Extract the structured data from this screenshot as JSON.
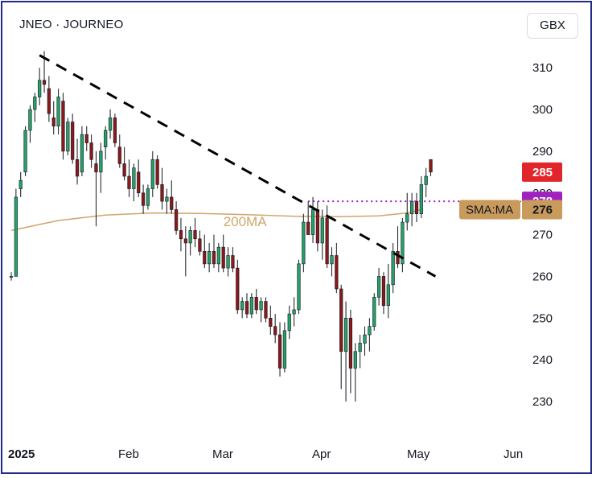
{
  "header": {
    "symbol": "JNEO",
    "separator": "·",
    "name": "JOURNEO",
    "currency": "GBX"
  },
  "colors": {
    "up": "#26a269",
    "down": "#8b1a1a",
    "ma": "#d0a66a",
    "trendline": "#000000",
    "level_line": "#a020c0",
    "last_price_tag": "#e0262b",
    "level_tag": "#a020c0",
    "sma_tag": "#c89a5c",
    "frame": "#1e2a8c"
  },
  "chart_data": {
    "type": "candlestick",
    "y_axis": {
      "ticks": [
        230,
        240,
        250,
        260,
        270,
        280,
        290,
        300,
        310
      ],
      "range": [
        222,
        318
      ],
      "position": "right"
    },
    "x_axis": {
      "ticks": [
        {
          "label": "2025",
          "bold": true,
          "index": 0
        },
        {
          "label": "Feb",
          "bold": false,
          "index": 22
        },
        {
          "label": "Mar",
          "bold": false,
          "index": 42
        },
        {
          "label": "Apr",
          "bold": false,
          "index": 62
        },
        {
          "label": "May",
          "bold": false,
          "index": 83
        },
        {
          "label": "Jun",
          "bold": false,
          "index": 103
        }
      ]
    },
    "grid": false,
    "candles": [
      {
        "o": 260,
        "h": 261,
        "l": 259,
        "c": 260
      },
      {
        "o": 260,
        "h": 281,
        "l": 260,
        "c": 279
      },
      {
        "o": 281,
        "h": 285,
        "l": 279,
        "c": 283
      },
      {
        "o": 285,
        "h": 296,
        "l": 284,
        "c": 295
      },
      {
        "o": 295,
        "h": 301,
        "l": 292,
        "c": 300
      },
      {
        "o": 300,
        "h": 304,
        "l": 297,
        "c": 303
      },
      {
        "o": 303,
        "h": 310,
        "l": 301,
        "c": 307
      },
      {
        "o": 307,
        "h": 314,
        "l": 304,
        "c": 306
      },
      {
        "o": 305,
        "h": 308,
        "l": 297,
        "c": 299
      },
      {
        "o": 298,
        "h": 302,
        "l": 294,
        "c": 296
      },
      {
        "o": 296,
        "h": 305,
        "l": 294,
        "c": 303
      },
      {
        "o": 302,
        "h": 304,
        "l": 288,
        "c": 290
      },
      {
        "o": 290,
        "h": 298,
        "l": 289,
        "c": 297
      },
      {
        "o": 297,
        "h": 299,
        "l": 287,
        "c": 288
      },
      {
        "o": 288,
        "h": 293,
        "l": 282,
        "c": 284
      },
      {
        "o": 285,
        "h": 296,
        "l": 284,
        "c": 294
      },
      {
        "o": 294,
        "h": 296,
        "l": 290,
        "c": 292
      },
      {
        "o": 292,
        "h": 294,
        "l": 286,
        "c": 288
      },
      {
        "o": 287,
        "h": 290,
        "l": 272,
        "c": 285
      },
      {
        "o": 285,
        "h": 292,
        "l": 280,
        "c": 290
      },
      {
        "o": 291,
        "h": 296,
        "l": 288,
        "c": 295
      },
      {
        "o": 295,
        "h": 300,
        "l": 293,
        "c": 298
      },
      {
        "o": 298,
        "h": 299,
        "l": 291,
        "c": 292
      },
      {
        "o": 291,
        "h": 294,
        "l": 286,
        "c": 287
      },
      {
        "o": 287,
        "h": 291,
        "l": 283,
        "c": 284
      },
      {
        "o": 284,
        "h": 288,
        "l": 279,
        "c": 281
      },
      {
        "o": 281,
        "h": 287,
        "l": 278,
        "c": 286
      },
      {
        "o": 285,
        "h": 288,
        "l": 279,
        "c": 280
      },
      {
        "o": 280,
        "h": 282,
        "l": 275,
        "c": 277
      },
      {
        "o": 277,
        "h": 282,
        "l": 276,
        "c": 281
      },
      {
        "o": 281,
        "h": 290,
        "l": 279,
        "c": 288
      },
      {
        "o": 288,
        "h": 289,
        "l": 281,
        "c": 282
      },
      {
        "o": 282,
        "h": 286,
        "l": 276,
        "c": 278
      },
      {
        "o": 278,
        "h": 281,
        "l": 275,
        "c": 279
      },
      {
        "o": 279,
        "h": 283,
        "l": 275,
        "c": 276
      },
      {
        "o": 276,
        "h": 278,
        "l": 270,
        "c": 271
      },
      {
        "o": 271,
        "h": 274,
        "l": 266,
        "c": 269
      },
      {
        "o": 269,
        "h": 272,
        "l": 260,
        "c": 268
      },
      {
        "o": 268,
        "h": 272,
        "l": 265,
        "c": 271
      },
      {
        "o": 271,
        "h": 274,
        "l": 267,
        "c": 269
      },
      {
        "o": 269,
        "h": 271,
        "l": 265,
        "c": 266
      },
      {
        "o": 266,
        "h": 270,
        "l": 262,
        "c": 263
      },
      {
        "o": 263,
        "h": 268,
        "l": 261,
        "c": 266
      },
      {
        "o": 266,
        "h": 270,
        "l": 262,
        "c": 263
      },
      {
        "o": 263,
        "h": 268,
        "l": 261,
        "c": 267
      },
      {
        "o": 267,
        "h": 270,
        "l": 261,
        "c": 262
      },
      {
        "o": 262,
        "h": 267,
        "l": 260,
        "c": 265
      },
      {
        "o": 265,
        "h": 267,
        "l": 261,
        "c": 262
      },
      {
        "o": 262,
        "h": 264,
        "l": 251,
        "c": 252
      },
      {
        "o": 252,
        "h": 255,
        "l": 250,
        "c": 254
      },
      {
        "o": 254,
        "h": 256,
        "l": 250,
        "c": 251
      },
      {
        "o": 251,
        "h": 256,
        "l": 250,
        "c": 255
      },
      {
        "o": 255,
        "h": 257,
        "l": 251,
        "c": 252
      },
      {
        "o": 252,
        "h": 255,
        "l": 249,
        "c": 254
      },
      {
        "o": 254,
        "h": 255,
        "l": 249,
        "c": 250
      },
      {
        "o": 250,
        "h": 253,
        "l": 246,
        "c": 248
      },
      {
        "o": 248,
        "h": 251,
        "l": 244,
        "c": 246
      },
      {
        "o": 246,
        "h": 249,
        "l": 236,
        "c": 238
      },
      {
        "o": 238,
        "h": 249,
        "l": 237,
        "c": 247
      },
      {
        "o": 247,
        "h": 253,
        "l": 245,
        "c": 251
      },
      {
        "o": 251,
        "h": 255,
        "l": 248,
        "c": 252
      },
      {
        "o": 252,
        "h": 264,
        "l": 251,
        "c": 263
      },
      {
        "o": 263,
        "h": 275,
        "l": 261,
        "c": 273
      },
      {
        "o": 273,
        "h": 278,
        "l": 270,
        "c": 270
      },
      {
        "o": 270,
        "h": 279,
        "l": 268,
        "c": 276
      },
      {
        "o": 276,
        "h": 278,
        "l": 266,
        "c": 268
      },
      {
        "o": 268,
        "h": 276,
        "l": 264,
        "c": 274
      },
      {
        "o": 274,
        "h": 277,
        "l": 262,
        "c": 263
      },
      {
        "o": 263,
        "h": 267,
        "l": 260,
        "c": 265
      },
      {
        "o": 265,
        "h": 268,
        "l": 256,
        "c": 257
      },
      {
        "o": 257,
        "h": 258,
        "l": 233,
        "c": 242
      },
      {
        "o": 242,
        "h": 254,
        "l": 230,
        "c": 250
      },
      {
        "o": 250,
        "h": 252,
        "l": 232,
        "c": 238
      },
      {
        "o": 238,
        "h": 244,
        "l": 230,
        "c": 242
      },
      {
        "o": 242,
        "h": 246,
        "l": 238,
        "c": 244
      },
      {
        "o": 244,
        "h": 248,
        "l": 241,
        "c": 246
      },
      {
        "o": 246,
        "h": 250,
        "l": 242,
        "c": 248
      },
      {
        "o": 248,
        "h": 256,
        "l": 247,
        "c": 255
      },
      {
        "o": 255,
        "h": 262,
        "l": 253,
        "c": 260
      },
      {
        "o": 260,
        "h": 261,
        "l": 251,
        "c": 253
      },
      {
        "o": 253,
        "h": 263,
        "l": 250,
        "c": 258
      },
      {
        "o": 258,
        "h": 268,
        "l": 256,
        "c": 266
      },
      {
        "o": 266,
        "h": 272,
        "l": 262,
        "c": 263
      },
      {
        "o": 263,
        "h": 274,
        "l": 261,
        "c": 273
      },
      {
        "o": 273,
        "h": 280,
        "l": 271,
        "c": 275
      },
      {
        "o": 275,
        "h": 280,
        "l": 272,
        "c": 278
      },
      {
        "o": 278,
        "h": 280,
        "l": 273,
        "c": 275
      },
      {
        "o": 275,
        "h": 284,
        "l": 274,
        "c": 282
      },
      {
        "o": 282,
        "h": 286,
        "l": 279,
        "c": 284
      },
      {
        "o": 288,
        "h": 288,
        "l": 284,
        "c": 285
      }
    ],
    "moving_average": {
      "name": "200MA",
      "x": [
        0,
        10,
        20,
        30,
        40,
        50,
        60,
        70,
        78,
        84,
        87
      ],
      "y": [
        271,
        273.4,
        274.7,
        275.2,
        275.1,
        274.8,
        274.4,
        274.3,
        274.5,
        275.2,
        276
      ]
    },
    "trendline": {
      "x1": 6,
      "y1": 313,
      "x2": 90,
      "y2": 260,
      "style": "dashed"
    },
    "level_line": {
      "value": 278,
      "x_start": 63,
      "style": "dotted"
    },
    "price_tags": [
      {
        "label": "285",
        "value": 285,
        "color_key": "last_price_tag"
      },
      {
        "label": "278",
        "value": 278,
        "color_key": "level_tag"
      },
      {
        "label": "276",
        "value": 276,
        "color_key": "sma_tag",
        "name": "SMA:MA"
      }
    ]
  }
}
